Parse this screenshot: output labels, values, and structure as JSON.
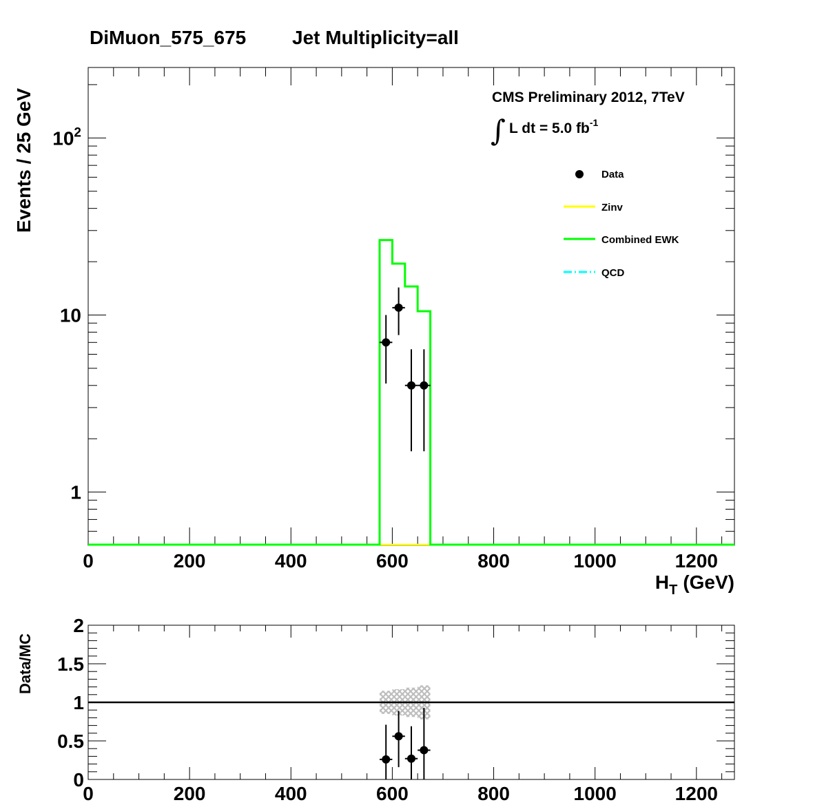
{
  "figure": {
    "title_left": "DiMuon_575_675",
    "title_right": "Jet Multiplicity=all",
    "cms_label": "CMS Preliminary 2012, 7TeV",
    "lumi_label": "L dt = 5.0 fb",
    "lumi_exponent": "-1",
    "integral_symbol": "∫"
  },
  "chart_data": [
    {
      "type": "line",
      "panel": "main",
      "xlabel": "H",
      "xlabel_sub": "T",
      "xlabel_unit": "(GeV)",
      "ylabel": "Events / 25 GeV",
      "xlim": [
        0,
        1275
      ],
      "ylim": [
        0.5,
        250
      ],
      "yscale": "log",
      "x_ticks": [
        0,
        200,
        400,
        600,
        800,
        1000,
        1200
      ],
      "y_ticks": [
        {
          "value": 1,
          "label": "1",
          "exp": ""
        },
        {
          "value": 10,
          "label": "10",
          "exp": ""
        },
        {
          "value": 100,
          "label": "10",
          "exp": "2"
        }
      ],
      "legend_position": "top-right",
      "legend": [
        {
          "name": "Data",
          "style": "marker",
          "color": "#000000"
        },
        {
          "name": "Zinv",
          "style": "line",
          "color": "#ffff00"
        },
        {
          "name": "Combined EWK",
          "style": "line",
          "color": "#00ff00"
        },
        {
          "name": "QCD",
          "style": "dashdot",
          "color": "#00ffff"
        }
      ],
      "histogram": {
        "name": "Combined EWK",
        "color": "#00ff00",
        "bin_edges": [
          575,
          600,
          625,
          650,
          675
        ],
        "values": [
          26.5,
          19.5,
          14.5,
          10.5
        ]
      },
      "data_points": {
        "name": "Data",
        "x": [
          587.5,
          612.5,
          637.5,
          662.5
        ],
        "y": [
          7,
          11,
          4,
          4
        ],
        "err_low": [
          2.9,
          3.3,
          2.3,
          2.3
        ],
        "err_high": [
          3.0,
          3.3,
          2.4,
          2.4
        ],
        "x_halfwidth": 12.5
      }
    },
    {
      "type": "scatter",
      "panel": "ratio",
      "ylabel": "Data/MC",
      "xlim": [
        0,
        1275
      ],
      "ylim": [
        0,
        2
      ],
      "x_ticks": [
        0,
        200,
        400,
        600,
        800,
        1000,
        1200
      ],
      "y_ticks": [
        0,
        0.5,
        1,
        1.5,
        2
      ],
      "y_tick_labels": [
        "0",
        "0.5",
        "1",
        "1.5",
        "2"
      ],
      "reference_line": 1,
      "uncertainty_band": {
        "bin_edges": [
          575,
          600,
          625,
          650,
          675
        ],
        "low": [
          0.85,
          0.83,
          0.81,
          0.78
        ],
        "high": [
          1.15,
          1.17,
          1.19,
          1.22
        ],
        "color": "#c0c0c0"
      },
      "points": {
        "x": [
          587.5,
          612.5,
          637.5,
          662.5
        ],
        "y": [
          0.26,
          0.56,
          0.27,
          0.38
        ],
        "err_low": [
          0.26,
          0.4,
          0.27,
          0.38
        ],
        "err_high": [
          0.45,
          0.33,
          0.42,
          0.55
        ]
      }
    }
  ]
}
